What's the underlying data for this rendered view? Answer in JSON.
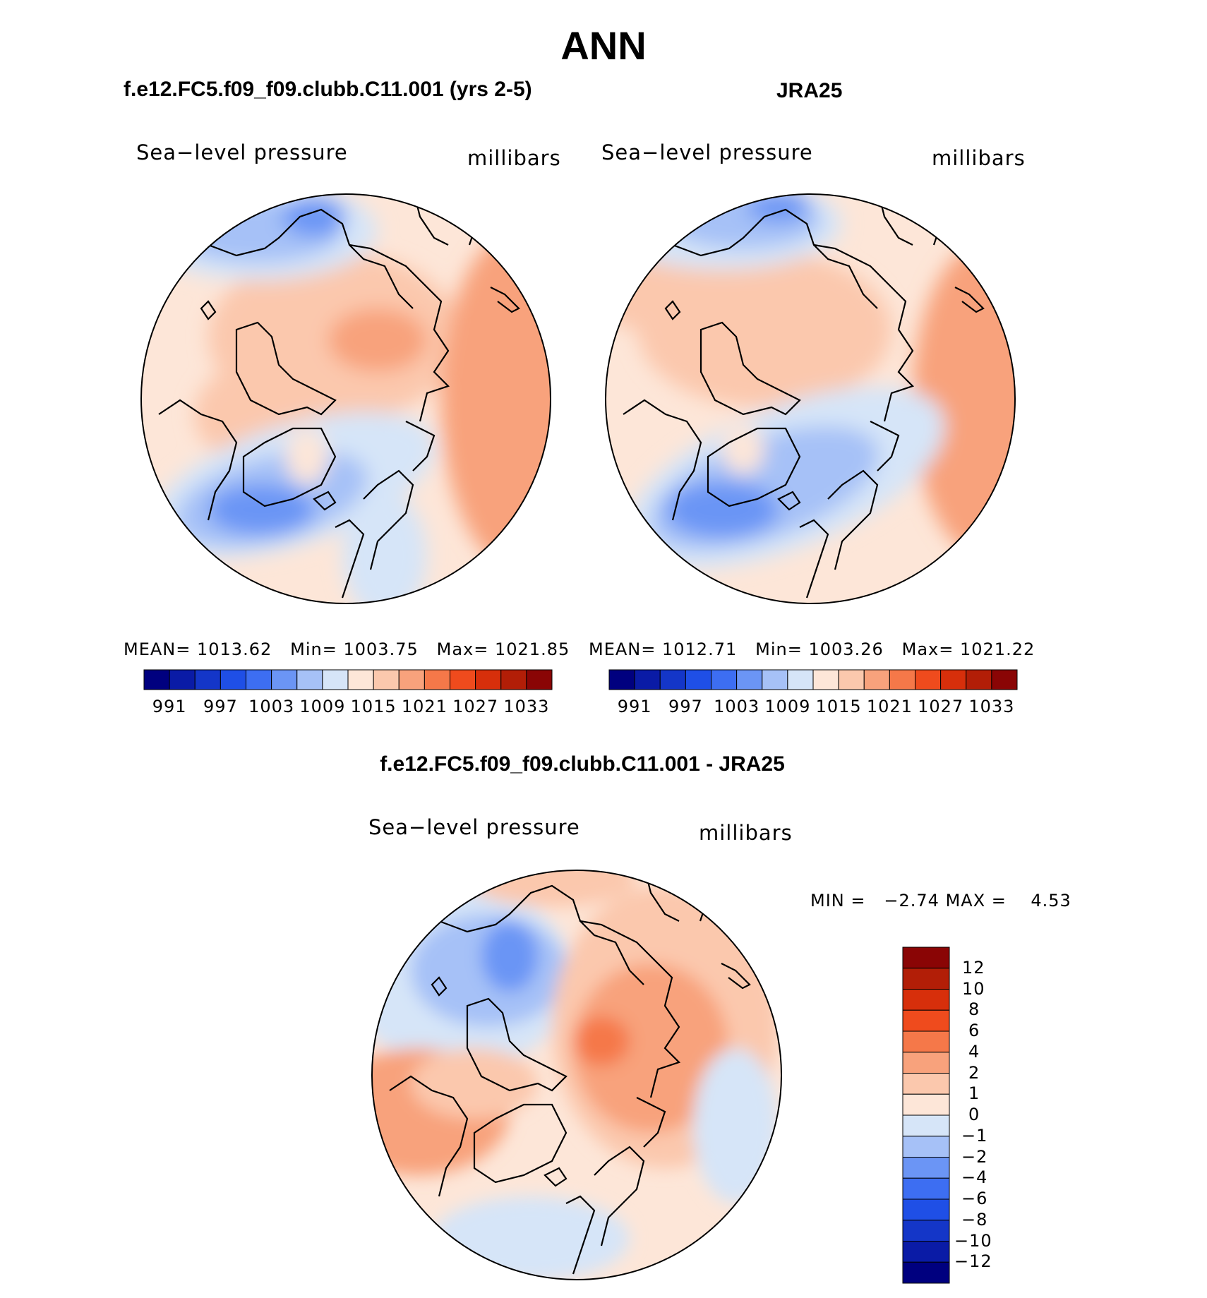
{
  "title": "ANN",
  "panels": [
    {
      "id": "model",
      "heading": "f.e12.FC5.f09_f09.clubb.C11.001 (yrs 2-5)",
      "variable": "Sea−level pressure",
      "units": "millibars",
      "stats": {
        "mean_label": "MEAN=",
        "mean": "1013.62",
        "min_label": "Min=",
        "min": "1003.75",
        "max_label": "Max=",
        "max": "1021.85"
      }
    },
    {
      "id": "obs",
      "heading": "JRA25",
      "variable": "Sea−level pressure",
      "units": "millibars",
      "stats": {
        "mean_label": "MEAN=",
        "mean": "1012.71",
        "min_label": "Min=",
        "min": "1003.26",
        "max_label": "Max=",
        "max": "1021.22"
      }
    }
  ],
  "abs_colorbar": {
    "colors": [
      "#00007f",
      "#0a1ba6",
      "#1436c8",
      "#1f4fe6",
      "#3d6ef2",
      "#6b95f5",
      "#a6c1f7",
      "#d6e5f8",
      "#fde6d8",
      "#fbc8ad",
      "#f8a27c",
      "#f57849",
      "#ef4b1d",
      "#d72f0b",
      "#b21e07",
      "#8a0505"
    ],
    "tick_labels": [
      "991",
      "997",
      "1003",
      "1009",
      "1015",
      "1021",
      "1027",
      "1033"
    ]
  },
  "diff_panel": {
    "heading": "f.e12.FC5.f09_f09.clubb.C11.001 - JRA25",
    "variable": "Sea−level pressure",
    "units": "millibars",
    "min_label": "MIN =",
    "min": "−2.74",
    "max_label": "MAX =",
    "max": "4.53"
  },
  "diff_colorbar": {
    "colors_top_to_bottom": [
      "#8a0505",
      "#b21e07",
      "#d72f0b",
      "#ef4b1d",
      "#f57849",
      "#f8a27c",
      "#fbc8ad",
      "#fde6d8",
      "#d6e5f8",
      "#a6c1f7",
      "#6b95f5",
      "#3d6ef2",
      "#1f4fe6",
      "#1436c8",
      "#0a1ba6",
      "#00007f"
    ],
    "tick_labels": [
      "12",
      "10",
      "8",
      "6",
      "4",
      "2",
      "1",
      "0",
      "−1",
      "−2",
      "−4",
      "−6",
      "−8",
      "−10",
      "−12"
    ]
  }
}
